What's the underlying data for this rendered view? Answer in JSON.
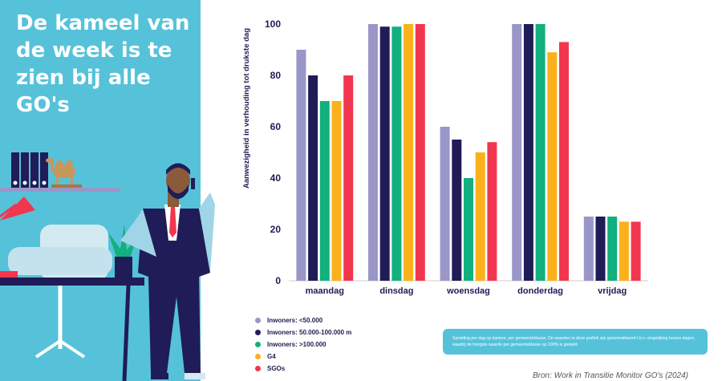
{
  "headline": "De kameel van de week is te zien bij alle GO's",
  "chart_data": {
    "type": "bar",
    "ylabel": "Aanwezigheid in verhouding tot drukste dag",
    "xlabel": "",
    "ylim": [
      0,
      100
    ],
    "yticks": [
      0,
      20,
      40,
      60,
      80,
      100
    ],
    "categories": [
      "maandag",
      "dinsdag",
      "woensdag",
      "donderdag",
      "vrijdag"
    ],
    "series": [
      {
        "name": "Inwoners: <50.000",
        "color": "#9b96c8",
        "values": [
          90,
          100,
          60,
          100,
          25
        ]
      },
      {
        "name": "Inwoners: 50.000-100.000 m",
        "color": "#1f1c57",
        "values": [
          80,
          99,
          55,
          100,
          25
        ]
      },
      {
        "name": "Inwoners: >100.000",
        "color": "#12b07c",
        "values": [
          70,
          99,
          40,
          100,
          25
        ]
      },
      {
        "name": "G4",
        "color": "#fbb11b",
        "values": [
          70,
          100,
          50,
          89,
          23
        ]
      },
      {
        "name": "SGOs",
        "color": "#f2364f",
        "values": [
          80,
          100,
          54,
          93,
          23
        ]
      }
    ]
  },
  "note": "Spreiding per dag op kantoor, per gemeenteklasse. De waarden in deze grafiek zijn genormaliseerd t.b.v. vergelijking tussen dagen, waarbij de hoogste waarde per gemeenteklasse op 100% is gesteld.",
  "source": "Bron: Work in Transitie Monitor GO's (2024)"
}
